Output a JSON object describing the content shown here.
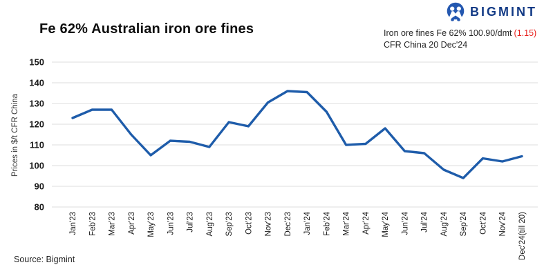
{
  "brand": {
    "name": "BIGMINT"
  },
  "header": {
    "title": "Fe 62% Australian iron ore fines",
    "subtitle_line1": "Iron ore fines Fe 62% 100.90/dmt",
    "subtitle_change": "(1.15)",
    "subtitle_line2": "CFR China 20 Dec'24"
  },
  "footer": {
    "source": "Source: Bigmint"
  },
  "colors": {
    "line": "#1e5caa",
    "grid": "#dcdcdc",
    "tick_text": "#1a1a1a",
    "axis_title_text": "#333333",
    "logo_navy": "#123a85",
    "logo_icon_blue": "#2458b0",
    "change_red": "#e8221f"
  },
  "chart_data": {
    "type": "line",
    "title": "Fe 62% Australian iron ore fines",
    "xlabel": "",
    "ylabel": "Prices in $/t CFR China",
    "ylim": [
      80,
      150
    ],
    "ytick_step": 10,
    "grid": "horizontal",
    "legend": "none",
    "categories": [
      "Jan'23",
      "Feb'23",
      "Mar'23",
      "Apr'23",
      "May'23",
      "Jun'23",
      "Jul'23",
      "Aug'23",
      "Sep'23",
      "Oct'23",
      "Nov'23",
      "Dec'23",
      "Jan'24",
      "Feb'24",
      "Mar'24",
      "Apr'24",
      "May'24",
      "Jun'24",
      "Jul'24",
      "Aug'24",
      "Sep'24",
      "Oct'24",
      "Nov'24",
      "Dec'24(till 20)"
    ],
    "values": [
      123,
      127,
      127,
      115,
      105,
      112,
      111.5,
      109,
      121,
      119,
      130.5,
      136,
      135.5,
      126,
      110,
      110.5,
      118,
      107,
      106,
      98,
      94,
      103.5,
      102,
      104.5
    ]
  }
}
